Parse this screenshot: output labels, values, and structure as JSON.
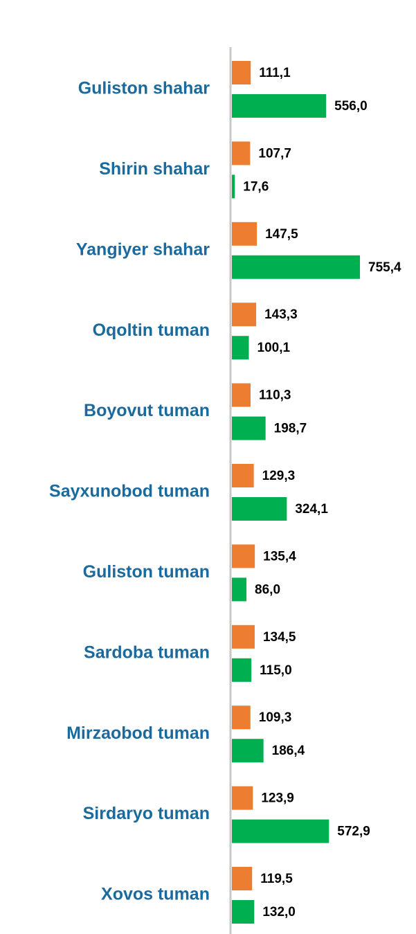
{
  "chart_data": {
    "type": "bar",
    "orientation": "horizontal",
    "categories": [
      "Guliston shahar",
      "Shirin shahar",
      "Yangiyer shahar",
      "Oqoltin tuman",
      "Boyovut tuman",
      "Sayxunobod tuman",
      "Guliston tuman",
      "Sardoba tuman",
      "Mirzaobod tuman",
      "Sirdaryo tuman",
      "Xovos tuman"
    ],
    "series": [
      {
        "color": "#ed7d31",
        "values": [
          111.1,
          107.7,
          147.5,
          143.3,
          110.3,
          129.3,
          135.4,
          134.5,
          109.3,
          123.9,
          119.5
        ],
        "value_labels": [
          "111,1",
          "107,7",
          "147,5",
          "143,3",
          "110,3",
          "129,3",
          "135,4",
          "134,5",
          "109,3",
          "123,9",
          "119,5"
        ]
      },
      {
        "color": "#00b050",
        "values": [
          556.0,
          17.6,
          755.4,
          100.1,
          198.7,
          324.1,
          86.0,
          115.0,
          186.4,
          572.9,
          132.0
        ],
        "value_labels": [
          "556,0",
          "17,6",
          "755,4",
          "100,1",
          "198,7",
          "324,1",
          "86,0",
          "115,0",
          "186,4",
          "572,9",
          "132,0"
        ]
      }
    ]
  }
}
